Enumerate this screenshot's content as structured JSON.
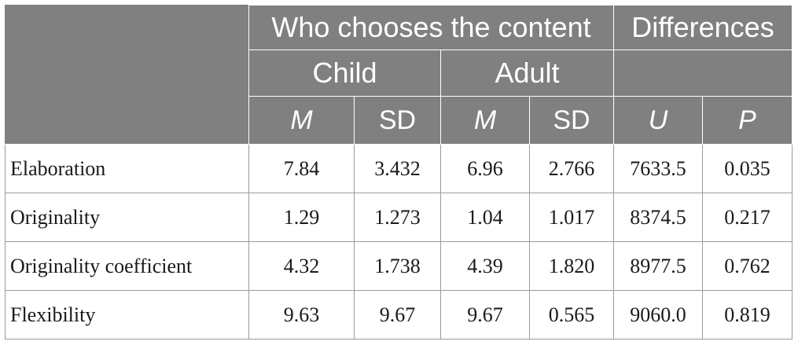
{
  "chart_data": {
    "type": "table",
    "header": {
      "group_1": "Who chooses the content",
      "group_2": "Differences",
      "sub_1": "Child",
      "sub_2": "Adult",
      "columns": [
        "M",
        "SD",
        "M",
        "SD",
        "U",
        "P"
      ]
    },
    "rows": [
      {
        "label": "Elaboration",
        "values": [
          "7.84",
          "3.432",
          "6.96",
          "2.766",
          "7633.5",
          "0.035"
        ]
      },
      {
        "label": "Originality",
        "values": [
          "1.29",
          "1.273",
          "1.04",
          "1.017",
          "8374.5",
          "0.217"
        ]
      },
      {
        "label": "Originality coefficient",
        "values": [
          "4.32",
          "1.738",
          "4.39",
          "1.820",
          "8977.5",
          "0.762"
        ]
      },
      {
        "label": "Flexibility",
        "values": [
          "9.63",
          "9.67",
          "9.67",
          "0.565",
          "9060.0",
          "0.819"
        ]
      }
    ],
    "colors": {
      "header_bg": "#808080",
      "header_text": "#ffffff",
      "body_border": "#9a9a9a"
    }
  }
}
